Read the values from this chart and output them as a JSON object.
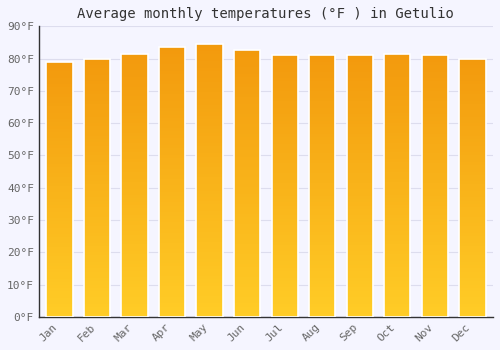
{
  "title": "Average monthly temperatures (°F ) in Getulio",
  "months": [
    "Jan",
    "Feb",
    "Mar",
    "Apr",
    "May",
    "Jun",
    "Jul",
    "Aug",
    "Sep",
    "Oct",
    "Nov",
    "Dec"
  ],
  "values": [
    79,
    80,
    81.5,
    83.5,
    84.5,
    82.5,
    81,
    81,
    81,
    81.5,
    81,
    80
  ],
  "ylim": [
    0,
    90
  ],
  "yticks": [
    0,
    10,
    20,
    30,
    40,
    50,
    60,
    70,
    80,
    90
  ],
  "ytick_labels": [
    "0°F",
    "10°F",
    "20°F",
    "30°F",
    "40°F",
    "50°F",
    "60°F",
    "70°F",
    "80°F",
    "90°F"
  ],
  "bar_color_top": "#F5A800",
  "bar_color_mid": "#F8B800",
  "bar_color_bottom": "#FFCC00",
  "bar_edge_color": "#CCCCCC",
  "background_color": "#F5F5FF",
  "grid_color": "#DDDDEE",
  "title_fontsize": 10,
  "tick_fontsize": 8,
  "font_family": "monospace"
}
